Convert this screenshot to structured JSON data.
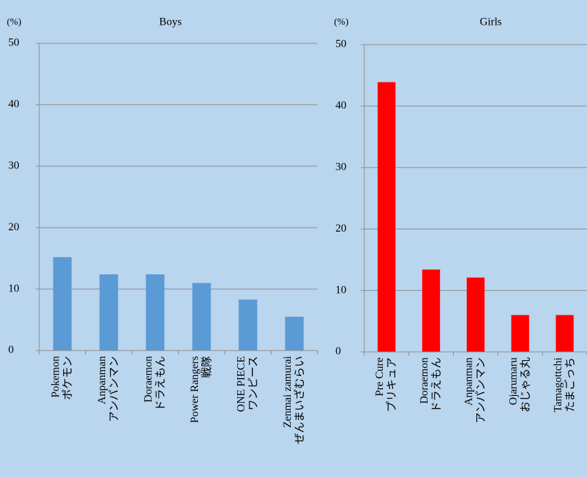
{
  "chart_data": [
    {
      "type": "bar",
      "title": "Boys",
      "ylabel": "(%)",
      "categories": [
        [
          "Pokemon",
          "ポケモン"
        ],
        [
          "Anpanman",
          "アンパンマン"
        ],
        [
          "Doraemon",
          "ドラえもん"
        ],
        [
          "Power Rangers",
          "戦隊"
        ],
        [
          "ONE PIECE",
          "ワンピース"
        ],
        [
          "Zenmai zamurai",
          "ぜんまいざむらい"
        ]
      ],
      "values": [
        15.2,
        12.4,
        12.4,
        11.0,
        8.3,
        5.5
      ],
      "color": "#5b9bd5",
      "ylim": [
        0,
        50
      ],
      "yticks": [
        0,
        10,
        20,
        30,
        40,
        50
      ],
      "grid": true
    },
    {
      "type": "bar",
      "title": "Girls",
      "ylabel": "(%)",
      "categories": [
        [
          "Pre Cure",
          "プリキュア"
        ],
        [
          "Doraemon",
          "ドラえもん"
        ],
        [
          "Anpanman",
          "アンパンマン"
        ],
        [
          "Ojarumaru",
          "おじゃる丸"
        ],
        [
          "Tamagottchi",
          "たまごっち"
        ]
      ],
      "values": [
        43.9,
        13.4,
        12.1,
        6.0,
        6.0
      ],
      "color": "#ff0000",
      "ylim": [
        0,
        50
      ],
      "yticks": [
        0,
        10,
        20,
        30,
        40,
        50
      ],
      "grid": true
    }
  ]
}
